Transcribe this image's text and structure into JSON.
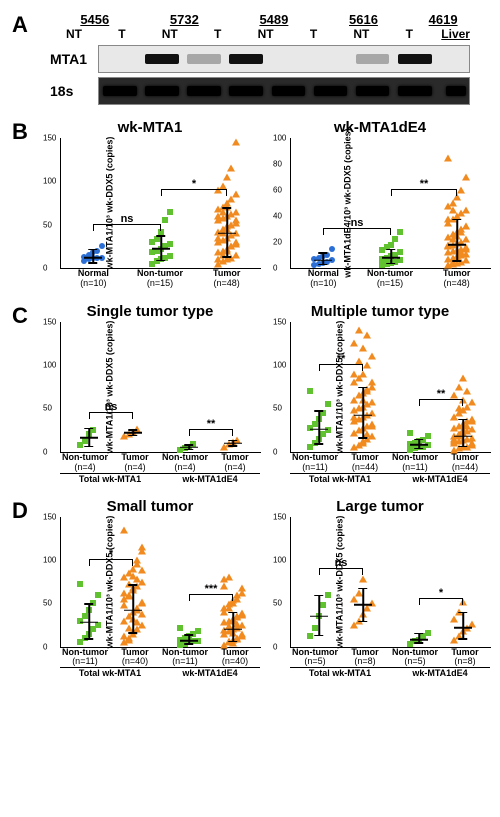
{
  "panelA": {
    "label": "A",
    "sample_ids": [
      "5456",
      "5732",
      "5489",
      "5616",
      "4619"
    ],
    "lane_types": [
      "NT",
      "T",
      "NT",
      "T",
      "NT",
      "T",
      "NT",
      "T",
      "Liver"
    ],
    "row1_label": "MTA1",
    "row2_label": "18s",
    "mta1_bands": [
      "none",
      "strong",
      "faint",
      "strong",
      "none",
      "none",
      "faint",
      "strong",
      "none"
    ],
    "s18_bands": [
      "strong",
      "strong",
      "strong",
      "strong",
      "strong",
      "strong",
      "strong",
      "strong",
      "strong"
    ]
  },
  "colors": {
    "normal": "#2b6fd6",
    "nontumor": "#5fc22e",
    "tumor": "#f18a1f"
  },
  "panels": [
    {
      "id": "B",
      "label": "B",
      "charts": [
        {
          "title": "wk-MTA1",
          "ylab": "wk-MTA1/10³ wk-DDX5 (copies)",
          "ymax": 150,
          "yticks": [
            0,
            50,
            100,
            150
          ],
          "groups": [
            {
              "label": "Normal",
              "n": "(n=10)",
              "color": "normal",
              "shape": "circ",
              "x": 16,
              "mean": 12,
              "err": [
                5,
                22
              ],
              "pts": [
                8,
                10,
                11,
                12,
                12,
                13,
                15,
                18,
                20,
                25
              ]
            },
            {
              "label": "Non-tumor",
              "n": "(n=15)",
              "color": "nontumor",
              "shape": "sq",
              "x": 50,
              "mean": 22,
              "err": [
                8,
                38
              ],
              "pts": [
                5,
                8,
                10,
                12,
                14,
                18,
                20,
                22,
                25,
                28,
                30,
                34,
                42,
                55,
                65
              ]
            },
            {
              "label": "Tumor",
              "n": "(n=48)",
              "color": "tumor",
              "shape": "tri",
              "x": 83,
              "mean": 40,
              "err": [
                12,
                70
              ],
              "pts": [
                5,
                8,
                10,
                12,
                15,
                18,
                20,
                22,
                25,
                28,
                30,
                32,
                35,
                38,
                40,
                42,
                45,
                48,
                50,
                52,
                55,
                58,
                60,
                62,
                65,
                68,
                70,
                75,
                80,
                85,
                90,
                95,
                105,
                115,
                145,
                10,
                15,
                20,
                25,
                30,
                35,
                40,
                45,
                50,
                55,
                60,
                65,
                70
              ]
            }
          ],
          "sigs": [
            {
              "from": 16,
              "to": 50,
              "y": 50,
              "text": "ns"
            },
            {
              "from": 50,
              "to": 83,
              "y": 90,
              "text": "*"
            }
          ]
        },
        {
          "title": "wk-MTA1dE4",
          "ylab": "wk-MTA1dE4/10³ wk-DDX5 (copies)",
          "ymax": 100,
          "yticks": [
            0,
            20,
            40,
            60,
            80,
            100
          ],
          "groups": [
            {
              "label": "Normal",
              "n": "(n=10)",
              "color": "normal",
              "shape": "circ",
              "x": 16,
              "mean": 6,
              "err": [
                2,
                12
              ],
              "pts": [
                2,
                3,
                4,
                5,
                6,
                7,
                8,
                9,
                10,
                15
              ]
            },
            {
              "label": "Non-tumor",
              "n": "(n=15)",
              "color": "nontumor",
              "shape": "sq",
              "x": 50,
              "mean": 8,
              "err": [
                3,
                15
              ],
              "pts": [
                2,
                3,
                4,
                5,
                6,
                7,
                8,
                9,
                10,
                12,
                14,
                16,
                18,
                22,
                28
              ]
            },
            {
              "label": "Tumor",
              "n": "(n=48)",
              "color": "tumor",
              "shape": "tri",
              "x": 83,
              "mean": 18,
              "err": [
                5,
                38
              ],
              "pts": [
                2,
                3,
                4,
                5,
                6,
                7,
                8,
                9,
                10,
                11,
                12,
                13,
                14,
                15,
                16,
                17,
                18,
                19,
                20,
                22,
                24,
                26,
                28,
                30,
                32,
                35,
                38,
                40,
                42,
                45,
                48,
                50,
                55,
                60,
                70,
                85,
                5,
                8,
                12,
                15,
                18,
                22,
                25,
                28,
                32,
                38,
                45,
                55
              ]
            }
          ],
          "sigs": [
            {
              "from": 16,
              "to": 50,
              "y": 30,
              "text": "ns"
            },
            {
              "from": 50,
              "to": 83,
              "y": 60,
              "text": "**"
            }
          ]
        }
      ]
    },
    {
      "id": "C",
      "label": "C",
      "charts": [
        {
          "title": "Single tumor type",
          "ylab": "wk-MTA1/10³ wk-DDX5 (copies)",
          "ymax": 150,
          "yticks": [
            0,
            50,
            100,
            150
          ],
          "subgroups": [
            "Total wk-MTA1",
            "wk-MTA1dE4"
          ],
          "groups": [
            {
              "label": "Non-tumor",
              "n": "(n=4)",
              "color": "nontumor",
              "shape": "sq",
              "x": 14,
              "mean": 16,
              "err": [
                5,
                28
              ],
              "pts": [
                8,
                12,
                20,
                25
              ]
            },
            {
              "label": "Tumor",
              "n": "(n=4)",
              "color": "tumor",
              "shape": "tri",
              "x": 36,
              "mean": 22,
              "err": [
                18,
                26
              ],
              "pts": [
                18,
                20,
                23,
                26
              ]
            },
            {
              "label": "Non-tumor",
              "n": "(n=4)",
              "color": "nontumor",
              "shape": "sq",
              "x": 64,
              "mean": 5,
              "err": [
                2,
                9
              ],
              "pts": [
                2,
                4,
                6,
                9
              ]
            },
            {
              "label": "Tumor",
              "n": "(n=4)",
              "color": "tumor",
              "shape": "tri",
              "x": 86,
              "mean": 10,
              "err": [
                6,
                14
              ],
              "pts": [
                6,
                9,
                11,
                14
              ]
            }
          ],
          "sigs": [
            {
              "from": 14,
              "to": 36,
              "y": 45,
              "text": "ns"
            },
            {
              "from": 64,
              "to": 86,
              "y": 25,
              "text": "**"
            }
          ]
        },
        {
          "title": "Multiple tumor type",
          "ylab": "wk-MTA1/10³ wk-DDX5 (copies)",
          "ymax": 150,
          "yticks": [
            0,
            50,
            100,
            150
          ],
          "subgroups": [
            "Total wk-MTA1",
            "wk-MTA1dE4"
          ],
          "groups": [
            {
              "label": "Non-tumor",
              "n": "(n=11)",
              "color": "nontumor",
              "shape": "sq",
              "x": 14,
              "mean": 26,
              "err": [
                8,
                48
              ],
              "pts": [
                5,
                10,
                15,
                20,
                25,
                28,
                32,
                38,
                45,
                55,
                70
              ]
            },
            {
              "label": "Tumor",
              "n": "(n=44)",
              "color": "tumor",
              "shape": "tri",
              "x": 36,
              "mean": 42,
              "err": [
                15,
                75
              ],
              "pts": [
                5,
                8,
                12,
                15,
                18,
                22,
                25,
                28,
                30,
                32,
                35,
                38,
                40,
                42,
                45,
                48,
                50,
                52,
                55,
                58,
                60,
                65,
                68,
                72,
                75,
                80,
                85,
                90,
                100,
                110,
                125,
                140,
                10,
                20,
                30,
                40,
                50,
                60,
                70,
                80,
                90,
                105,
                120,
                135
              ]
            },
            {
              "label": "Non-tumor",
              "n": "(n=11)",
              "color": "nontumor",
              "shape": "sq",
              "x": 64,
              "mean": 8,
              "err": [
                3,
                15
              ],
              "pts": [
                2,
                4,
                5,
                6,
                8,
                9,
                10,
                12,
                14,
                18,
                22
              ]
            },
            {
              "label": "Tumor",
              "n": "(n=44)",
              "color": "tumor",
              "shape": "tri",
              "x": 86,
              "mean": 18,
              "err": [
                5,
                38
              ],
              "pts": [
                2,
                4,
                5,
                6,
                8,
                10,
                12,
                14,
                15,
                16,
                18,
                20,
                22,
                24,
                26,
                28,
                30,
                32,
                35,
                38,
                40,
                45,
                48,
                52,
                58,
                65,
                75,
                85,
                5,
                10,
                15,
                20,
                25,
                30,
                35,
                40,
                50,
                60,
                70,
                8,
                12,
                18,
                25,
                35
              ]
            }
          ],
          "sigs": [
            {
              "from": 14,
              "to": 36,
              "y": 100,
              "text": "**"
            },
            {
              "from": 64,
              "to": 86,
              "y": 60,
              "text": "**"
            }
          ]
        }
      ]
    },
    {
      "id": "D",
      "label": "D",
      "charts": [
        {
          "title": "Small tumor",
          "ylab": "wk-MTA1/10³ wk-DDX5 (copies)",
          "ymax": 150,
          "yticks": [
            0,
            50,
            100,
            150
          ],
          "subgroups": [
            "Total wk-MTA1",
            "wk-MTA1dE4"
          ],
          "groups": [
            {
              "label": "Non-tumor",
              "n": "(n=11)",
              "color": "nontumor",
              "shape": "sq",
              "x": 14,
              "mean": 28,
              "err": [
                8,
                50
              ],
              "pts": [
                5,
                10,
                15,
                20,
                25,
                30,
                35,
                42,
                50,
                60,
                72
              ]
            },
            {
              "label": "Tumor",
              "n": "(n=40)",
              "color": "tumor",
              "shape": "tri",
              "x": 36,
              "mean": 42,
              "err": [
                15,
                72
              ],
              "pts": [
                5,
                10,
                15,
                20,
                25,
                30,
                35,
                40,
                45,
                50,
                55,
                60,
                65,
                70,
                75,
                80,
                85,
                90,
                100,
                115,
                135,
                8,
                18,
                28,
                38,
                48,
                58,
                68,
                78,
                88,
                12,
                22,
                32,
                42,
                52,
                62,
                72,
                82,
                95,
                110
              ]
            },
            {
              "label": "Non-tumor",
              "n": "(n=11)",
              "color": "nontumor",
              "shape": "sq",
              "x": 64,
              "mean": 7,
              "err": [
                2,
                14
              ],
              "pts": [
                2,
                3,
                5,
                6,
                7,
                8,
                10,
                12,
                15,
                18,
                22
              ]
            },
            {
              "label": "Tumor",
              "n": "(n=40)",
              "color": "tumor",
              "shape": "tri",
              "x": 86,
              "mean": 20,
              "err": [
                5,
                40
              ],
              "pts": [
                2,
                5,
                8,
                10,
                12,
                15,
                18,
                20,
                22,
                25,
                28,
                30,
                32,
                35,
                38,
                40,
                45,
                50,
                55,
                62,
                70,
                80,
                4,
                9,
                14,
                19,
                24,
                29,
                34,
                39,
                44,
                49,
                54,
                60,
                68,
                78,
                6,
                16,
                26,
                36
              ]
            }
          ],
          "sigs": [
            {
              "from": 14,
              "to": 36,
              "y": 100,
              "text": "*"
            },
            {
              "from": 64,
              "to": 86,
              "y": 60,
              "text": "***"
            }
          ]
        },
        {
          "title": "Large tumor",
          "ylab": "wk-MTA1/10³ wk-DDX5 (copies)",
          "ymax": 150,
          "yticks": [
            0,
            50,
            100,
            150
          ],
          "subgroups": [
            "Total wk-MTA1",
            "wk-MTA1dE4"
          ],
          "groups": [
            {
              "label": "Non-tumor",
              "n": "(n=5)",
              "color": "nontumor",
              "shape": "sq",
              "x": 14,
              "mean": 35,
              "err": [
                12,
                60
              ],
              "pts": [
                12,
                22,
                35,
                48,
                60
              ]
            },
            {
              "label": "Tumor",
              "n": "(n=8)",
              "color": "tumor",
              "shape": "tri",
              "x": 36,
              "mean": 48,
              "err": [
                28,
                68
              ],
              "pts": [
                25,
                30,
                38,
                45,
                50,
                55,
                62,
                78
              ]
            },
            {
              "label": "Non-tumor",
              "n": "(n=5)",
              "color": "nontumor",
              "shape": "sq",
              "x": 64,
              "mean": 8,
              "err": [
                3,
                16
              ],
              "pts": [
                3,
                6,
                8,
                12,
                16
              ]
            },
            {
              "label": "Tumor",
              "n": "(n=8)",
              "color": "tumor",
              "shape": "tri",
              "x": 86,
              "mean": 22,
              "err": [
                8,
                40
              ],
              "pts": [
                8,
                12,
                18,
                22,
                26,
                32,
                40,
                52
              ]
            }
          ],
          "sigs": [
            {
              "from": 14,
              "to": 36,
              "y": 90,
              "text": "ns"
            },
            {
              "from": 64,
              "to": 86,
              "y": 55,
              "text": "*"
            }
          ]
        }
      ]
    }
  ]
}
